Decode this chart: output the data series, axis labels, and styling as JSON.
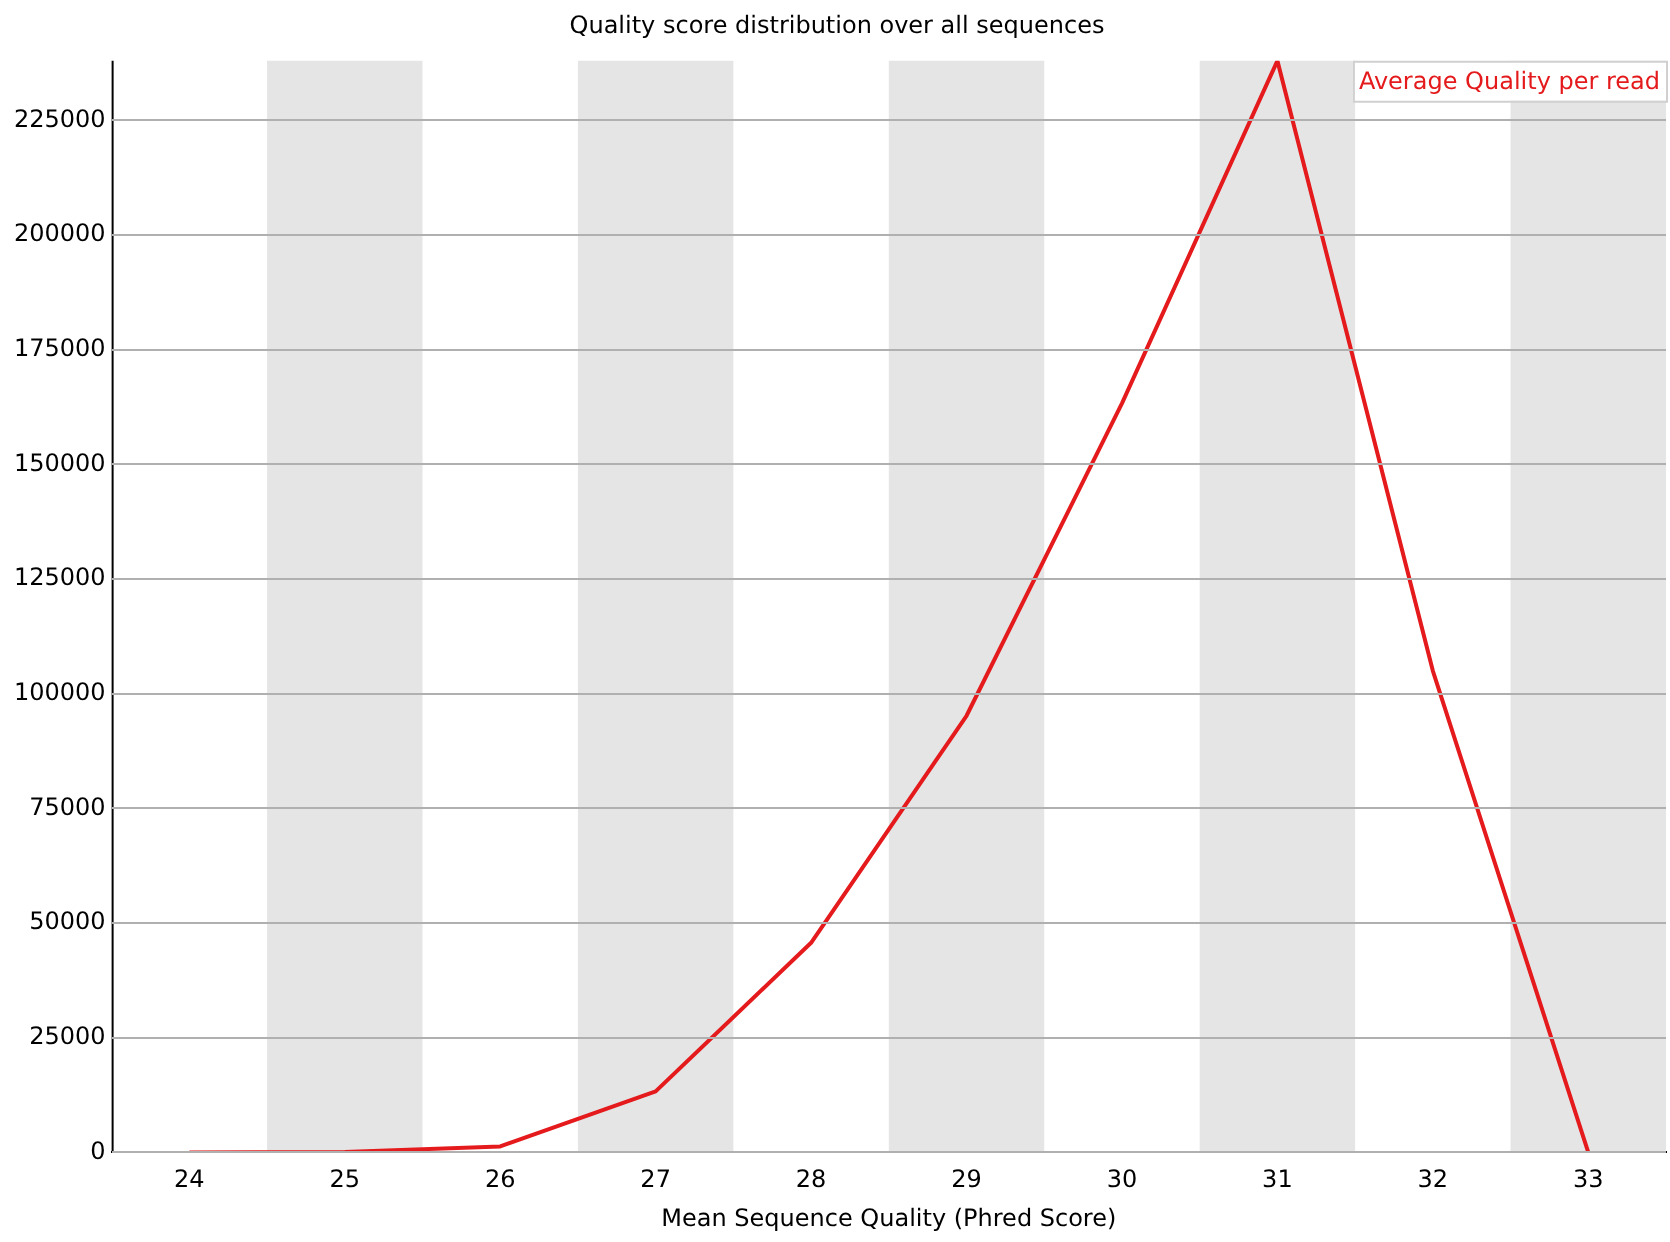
{
  "chart_data": {
    "type": "line",
    "title": "Quality score distribution over all sequences",
    "xlabel": "Mean Sequence Quality (Phred Score)",
    "x": [
      24,
      25,
      26,
      27,
      28,
      29,
      30,
      31,
      32,
      33
    ],
    "series": [
      {
        "name": "Average Quality per read",
        "color": "#e41a1c",
        "values": [
          0,
          100,
          1300,
          13300,
          45700,
          95200,
          163300,
          238000,
          105000,
          0
        ]
      }
    ],
    "xlim": [
      23.5,
      33.5
    ],
    "xticks": [
      24,
      25,
      26,
      27,
      28,
      29,
      30,
      31,
      32,
      33
    ],
    "ylim": [
      0,
      238000
    ],
    "yticks": [
      0,
      25000,
      50000,
      75000,
      100000,
      125000,
      150000,
      175000,
      200000,
      225000
    ],
    "bands": [
      {
        "axis": "x",
        "from": 24.5,
        "to": 25.5,
        "color": "#e5e5e5"
      },
      {
        "axis": "x",
        "from": 26.5,
        "to": 27.5,
        "color": "#e5e5e5"
      },
      {
        "axis": "x",
        "from": 28.5,
        "to": 29.5,
        "color": "#e5e5e5"
      },
      {
        "axis": "x",
        "from": 30.5,
        "to": 31.5,
        "color": "#e5e5e5"
      },
      {
        "axis": "x",
        "from": 32.5,
        "to": 33.5,
        "color": "#e5e5e5"
      }
    ],
    "grid": "y",
    "legend": "top right",
    "marker": "none",
    "line_style": "solid"
  }
}
